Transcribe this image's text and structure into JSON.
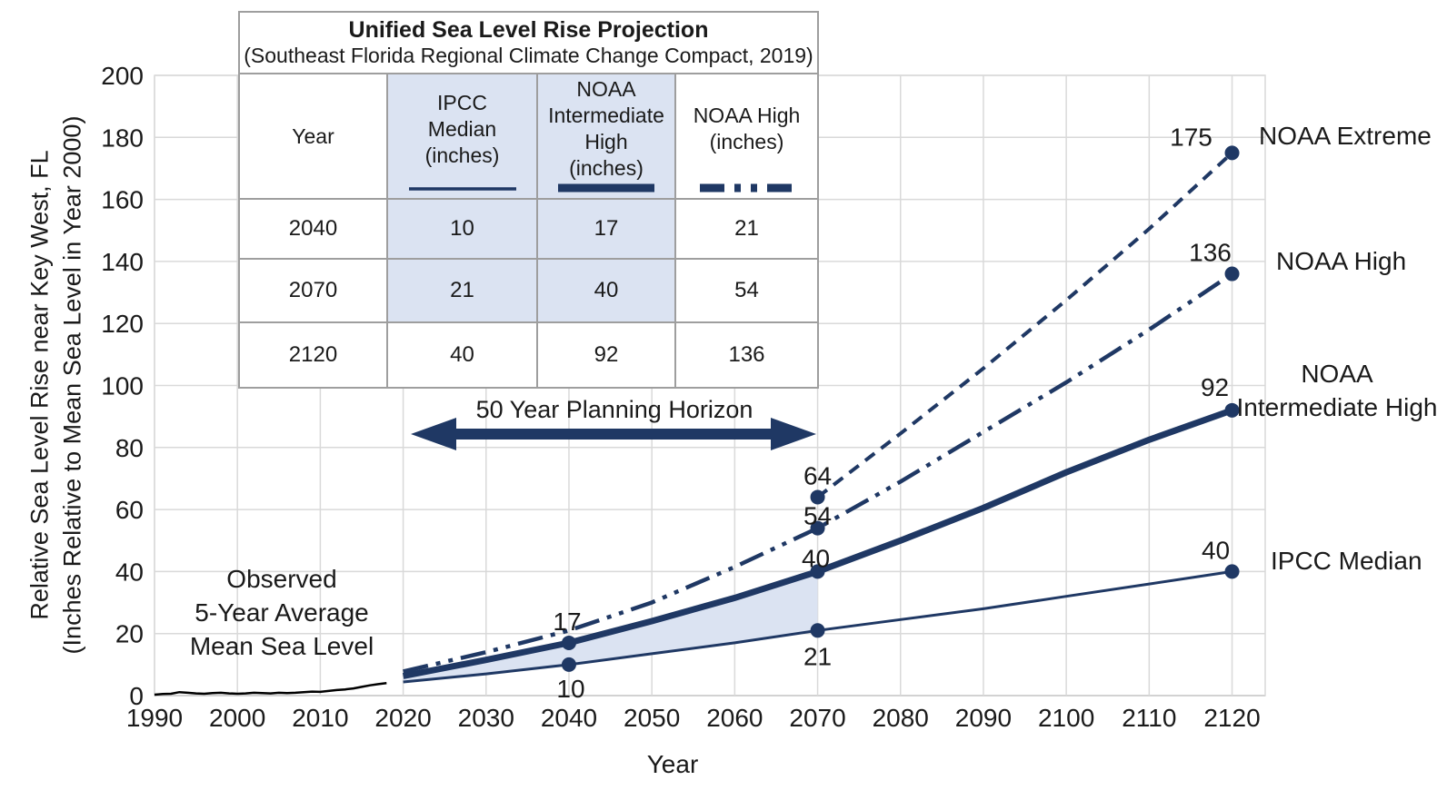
{
  "colors": {
    "navy": "#1f3864",
    "band": "#dbe3f2",
    "grid": "#d9d9d9",
    "axis": "#bfbfbf",
    "table_border": "#9e9e9e",
    "text": "#1a1a1a"
  },
  "y_axis": {
    "title_line1": "Relative Sea Level Rise near Key West, FL",
    "title_line2": "(Inches Relative to Mean Sea Level in Year 2000)"
  },
  "x_axis": {
    "title": "Year"
  },
  "observed_label": "Observed\n5-Year Average\nMean Sea Level",
  "planning_horizon_label": "50 Year Planning Horizon",
  "line_labels": {
    "extreme": "NOAA Extreme",
    "high": "NOAA High",
    "int_high": "NOAA\nIntermediate High",
    "ipcc": "IPCC Median"
  },
  "table": {
    "title": "Unified Sea Level Rise Projection",
    "subtitle": "(Southeast Florida Regional Climate Change Compact, 2019)",
    "header": {
      "year": "Year",
      "ipcc": "IPCC\nMedian\n(inches)",
      "noaa_int_high": "NOAA\nIntermediate\nHigh\n(inches)",
      "noaa_high": "NOAA High\n(inches)"
    },
    "rows": [
      {
        "year": "2040",
        "ipcc": "10",
        "noaa_int_high": "17",
        "noaa_high": "21"
      },
      {
        "year": "2070",
        "ipcc": "21",
        "noaa_int_high": "40",
        "noaa_high": "54"
      },
      {
        "year": "2120",
        "ipcc": "40",
        "noaa_int_high": "92",
        "noaa_high": "136"
      }
    ]
  },
  "chart_data": {
    "type": "line",
    "title": "Unified Sea Level Rise Projection",
    "xlabel": "Year",
    "ylabel": "Relative Sea Level Rise near Key West, FL (Inches Relative to Mean Sea Level in Year 2000)",
    "xlim": [
      1990,
      2124
    ],
    "ylim": [
      0,
      200
    ],
    "x_ticks": [
      1990,
      2000,
      2010,
      2020,
      2030,
      2040,
      2050,
      2060,
      2070,
      2080,
      2090,
      2100,
      2110,
      2120
    ],
    "y_ticks": [
      0,
      20,
      40,
      60,
      80,
      100,
      120,
      140,
      160,
      180,
      200
    ],
    "grid": true,
    "legend_position": "end-of-line labels at right",
    "key_values": {
      "2040": {
        "IPCC Median": 10,
        "NOAA Intermediate High": 17,
        "NOAA High": 21
      },
      "2070": {
        "IPCC Median": 21,
        "NOAA Intermediate High": 40,
        "NOAA High": 54,
        "NOAA Extreme": 64
      },
      "2120": {
        "IPCC Median": 40,
        "NOAA Intermediate High": 92,
        "NOAA High": 136,
        "NOAA Extreme": 175
      }
    },
    "series": [
      {
        "name": "Observed 5-Year Average Mean Sea Level",
        "style": "solid",
        "width": 2.5,
        "color": "#000000",
        "x": [
          1990,
          1991,
          1992,
          1993,
          1994,
          1995,
          1996,
          1997,
          1998,
          1999,
          2000,
          2001,
          2002,
          2003,
          2004,
          2005,
          2006,
          2007,
          2008,
          2009,
          2010,
          2011,
          2012,
          2013,
          2014,
          2015,
          2016,
          2017,
          2018
        ],
        "y": [
          0.3,
          0.5,
          0.6,
          1.1,
          0.9,
          0.7,
          0.6,
          0.8,
          0.9,
          0.7,
          0.6,
          0.7,
          0.9,
          0.8,
          0.7,
          0.9,
          0.8,
          0.9,
          1.1,
          1.3,
          1.2,
          1.5,
          1.8,
          2.0,
          2.3,
          2.8,
          3.3,
          3.7,
          4.0
        ],
        "point_labels": []
      },
      {
        "name": "IPCC Median",
        "style": "solid",
        "width": 3,
        "x": [
          2020,
          2030,
          2040,
          2050,
          2060,
          2070,
          2080,
          2090,
          2100,
          2110,
          2120
        ],
        "y": [
          4.4,
          7,
          10,
          13.5,
          17,
          21,
          24.5,
          28,
          32,
          36,
          40
        ],
        "point_labels": [
          {
            "x": 2040,
            "value": 10,
            "label": "10",
            "dx": 2,
            "dy": 26
          },
          {
            "x": 2070,
            "value": 21,
            "label": "21",
            "dx": 0,
            "dy": 28
          },
          {
            "x": 2120,
            "value": 40,
            "label": "40",
            "dx": -18,
            "dy": -24
          }
        ]
      },
      {
        "name": "NOAA Intermediate High",
        "style": "solid",
        "width": 7,
        "x": [
          2020,
          2030,
          2040,
          2050,
          2060,
          2070,
          2080,
          2090,
          2100,
          2110,
          2120
        ],
        "y": [
          6.3,
          11.5,
          17,
          24,
          31.5,
          40,
          50,
          60.5,
          72,
          82.5,
          92
        ],
        "point_labels": [
          {
            "x": 2040,
            "value": 17,
            "label": "17",
            "dx": -2,
            "dy": -24
          },
          {
            "x": 2070,
            "value": 40,
            "label": "40",
            "dx": -2,
            "dy": -15
          },
          {
            "x": 2120,
            "value": 92,
            "label": "92",
            "dx": -19,
            "dy": -26
          }
        ]
      },
      {
        "name": "NOAA High",
        "style": "dashdotdot",
        "width": 4.5,
        "x": [
          2020,
          2030,
          2040,
          2050,
          2060,
          2070,
          2080,
          2090,
          2100,
          2110,
          2120
        ],
        "y": [
          7.8,
          14,
          21,
          30,
          41.5,
          54,
          69,
          85,
          101,
          118,
          136
        ],
        "point_labels": [
          {
            "x": 2070,
            "value": 54,
            "label": "54",
            "dx": 0,
            "dy": -14
          },
          {
            "x": 2120,
            "value": 136,
            "label": "136",
            "dx": -24,
            "dy": -24
          }
        ]
      },
      {
        "name": "NOAA Extreme",
        "style": "dashed",
        "width": 4,
        "x": [
          2070,
          2080,
          2090,
          2100,
          2110,
          2120
        ],
        "y": [
          64,
          84.5,
          105.5,
          127.5,
          150.5,
          175
        ],
        "point_labels": [
          {
            "x": 2070,
            "value": 64,
            "label": "64",
            "dx": 0,
            "dy": -24
          },
          {
            "x": 2120,
            "value": 175,
            "label": "175",
            "dx": -45,
            "dy": -18
          }
        ]
      }
    ],
    "shaded_band": {
      "between": [
        "IPCC Median",
        "NOAA Intermediate High"
      ],
      "x_range": [
        2020,
        2070
      ],
      "color": "#dbe3f2"
    }
  }
}
